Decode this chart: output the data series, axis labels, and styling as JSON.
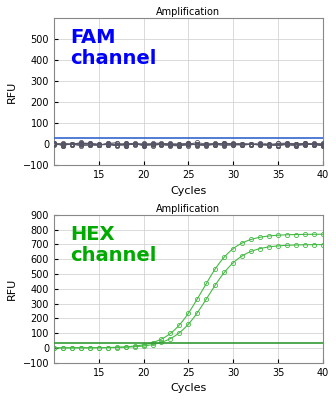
{
  "title": "Amplification",
  "xlabel": "Cycles",
  "ylabel": "RFU",
  "fam_label": "FAM\nchannel",
  "hex_label": "HEX\nchannel",
  "fam_ylim": [
    -100,
    600
  ],
  "hex_ylim": [
    -100,
    900
  ],
  "xlim": [
    10,
    40
  ],
  "fam_yticks": [
    -100,
    0,
    100,
    200,
    300,
    400,
    500
  ],
  "hex_yticks": [
    -100,
    0,
    100,
    200,
    300,
    400,
    500,
    600,
    700,
    800,
    900
  ],
  "xticks": [
    15,
    20,
    25,
    30,
    35,
    40
  ],
  "fam_threshold": 30,
  "hex_threshold": 35,
  "fam_line_color": "#3366cc",
  "hex_line_color": "#339933",
  "fam_label_color": "#0000ff",
  "hex_label_color": "#00aa00",
  "data_color_fam": "#555566",
  "data_color_hex": "#44bb44",
  "background_color": "#ffffff",
  "grid_color": "#cccccc",
  "num_flat_fam": 8,
  "num_flat_hex": 1,
  "hex_ct1": 26.5,
  "hex_ct2": 27.2,
  "hex_plateau1": 770,
  "hex_plateau2": 700,
  "hex_k": 0.55,
  "title_fontsize": 7,
  "label_fontsize": 14,
  "axis_label_fontsize": 8,
  "tick_fontsize": 7
}
